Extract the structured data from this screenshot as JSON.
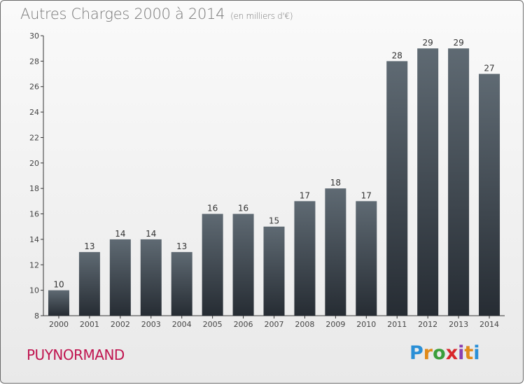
{
  "colors": {
    "bar_top": "#5f6a73",
    "bar_bottom": "#262c33",
    "city": "#c0144f"
  },
  "header": {
    "title": "Autres Charges 2000 à 2014",
    "subtitle": "(en milliers d'€)"
  },
  "footer": {
    "city": "PUYNORMAND",
    "logo": "Proxiti"
  },
  "chart_data": {
    "type": "bar",
    "title": "Autres Charges 2000 à 2014",
    "subtitle": "(en milliers d'€)",
    "xlabel": "",
    "ylabel": "",
    "categories": [
      "2000",
      "2001",
      "2002",
      "2003",
      "2004",
      "2005",
      "2006",
      "2007",
      "2008",
      "2009",
      "2010",
      "2011",
      "2012",
      "2013",
      "2014"
    ],
    "values": [
      10,
      13,
      14,
      14,
      13,
      16,
      16,
      15,
      17,
      18,
      17,
      28,
      29,
      29,
      27
    ],
    "ylim": [
      8,
      30
    ],
    "yticks": [
      8,
      10,
      12,
      14,
      16,
      18,
      20,
      22,
      24,
      26,
      28,
      30
    ],
    "grid": false,
    "legend": "none"
  }
}
